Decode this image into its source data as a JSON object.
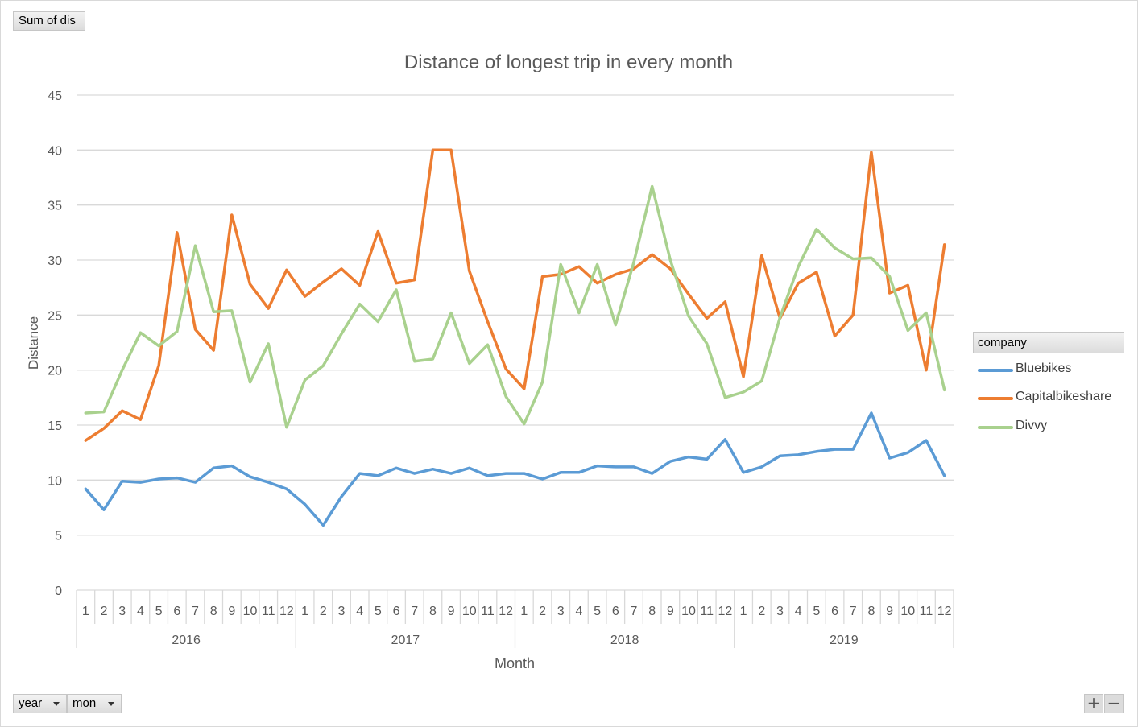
{
  "field_buttons": {
    "value_field": "Sum of dis",
    "year_field": "year",
    "month_field": "mon",
    "legend_field": "company"
  },
  "zoom": {
    "plus": "+",
    "minus": "−"
  },
  "chart_data": {
    "type": "line",
    "title": "Distance of longest trip in every month",
    "xlabel": "Month",
    "ylabel": "Distance",
    "ylim": [
      0,
      45
    ],
    "yticks": [
      0,
      5,
      10,
      15,
      20,
      25,
      30,
      35,
      40,
      45
    ],
    "grid": true,
    "legend_position": "right",
    "years": [
      "2016",
      "2017",
      "2018",
      "2019"
    ],
    "months": [
      "1",
      "2",
      "3",
      "4",
      "5",
      "6",
      "7",
      "8",
      "9",
      "10",
      "11",
      "12"
    ],
    "series": [
      {
        "name": "Bluebikes",
        "color": "#5b9bd5",
        "values": [
          9.2,
          7.3,
          9.9,
          9.8,
          10.1,
          10.2,
          9.8,
          11.1,
          11.3,
          10.3,
          9.8,
          9.2,
          7.8,
          5.9,
          8.5,
          10.6,
          10.4,
          11.1,
          10.6,
          11.0,
          10.6,
          11.1,
          10.4,
          10.6,
          10.6,
          10.1,
          10.7,
          10.7,
          11.3,
          11.2,
          11.2,
          10.6,
          11.7,
          12.1,
          11.9,
          13.7,
          10.7,
          11.2,
          12.2,
          12.3,
          12.6,
          12.8,
          12.8,
          16.1,
          12.0,
          12.5,
          13.6,
          10.4
        ]
      },
      {
        "name": "Capitalbikeshare",
        "color": "#ed7d31",
        "values": [
          13.6,
          14.7,
          16.3,
          15.5,
          20.4,
          32.5,
          23.7,
          21.8,
          34.1,
          27.8,
          25.6,
          29.1,
          26.7,
          28.0,
          29.2,
          27.7,
          32.6,
          27.9,
          28.2,
          40.0,
          40.0,
          29.0,
          24.4,
          20.1,
          18.3,
          28.5,
          28.7,
          29.4,
          27.9,
          28.7,
          29.2,
          30.5,
          29.2,
          26.9,
          24.7,
          26.2,
          19.4,
          30.4,
          24.7,
          27.9,
          28.9,
          23.1,
          25.0,
          39.8,
          27.0,
          27.7,
          20.0,
          31.4
        ]
      },
      {
        "name": "Divvy",
        "color": "#a9d18e",
        "values": [
          16.1,
          16.2,
          20.0,
          23.4,
          22.2,
          23.5,
          31.3,
          25.3,
          25.4,
          18.9,
          22.4,
          14.8,
          19.1,
          20.4,
          23.3,
          26.0,
          24.4,
          27.3,
          20.8,
          21.0,
          25.2,
          20.6,
          22.3,
          17.6,
          15.1,
          18.9,
          29.6,
          25.2,
          29.6,
          24.1,
          29.8,
          36.7,
          30.0,
          24.9,
          22.4,
          17.5,
          18.0,
          19.0,
          24.8,
          29.4,
          32.8,
          31.1,
          30.1,
          30.2,
          28.5,
          23.6,
          25.2,
          18.2
        ]
      }
    ]
  }
}
